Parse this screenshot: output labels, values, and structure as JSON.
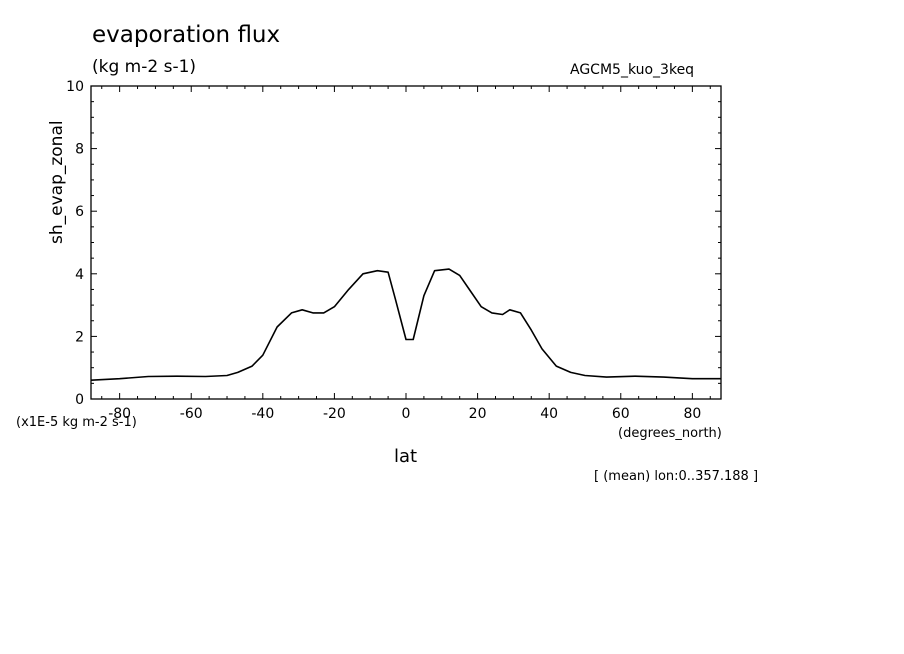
{
  "chart_data": {
    "type": "line",
    "title": "evaporation flux",
    "units": "(kg m-2 s-1)",
    "experiment": "AGCM5_kuo_3keq",
    "ylabel": "sh_evap_zonal",
    "xlabel": "lat",
    "x_units": "(degrees_north)",
    "y_scale_note": "(x1E-5 kg m-2 s-1)",
    "averaging_note": "[ (mean) lon:0..357.188 ]",
    "xlim": [
      -88,
      88
    ],
    "ylim": [
      0,
      10
    ],
    "x_ticks": [
      -80,
      -60,
      -40,
      -20,
      0,
      20,
      40,
      60,
      80
    ],
    "x_tick_labels": [
      "-80",
      "-60",
      "-40",
      "-20",
      "0",
      "20",
      "40",
      "60",
      "80"
    ],
    "y_ticks": [
      0,
      2,
      4,
      6,
      8,
      10
    ],
    "y_tick_labels": [
      "0",
      "2",
      "4",
      "6",
      "8",
      "10"
    ],
    "grid": false,
    "legend": "none",
    "series": [
      {
        "color": "#000000",
        "x": [
          -88,
          -80,
          -72,
          -64,
          -56,
          -50,
          -47,
          -43,
          -40,
          -36,
          -32,
          -29,
          -26,
          -23,
          -20,
          -16,
          -12,
          -8,
          -5,
          -3,
          0,
          2,
          5,
          8,
          12,
          15,
          18,
          21,
          24,
          27,
          29,
          32,
          35,
          38,
          42,
          46,
          50,
          56,
          64,
          72,
          80,
          88
        ],
        "y": [
          0.6,
          0.65,
          0.72,
          0.73,
          0.72,
          0.75,
          0.85,
          1.05,
          1.4,
          2.3,
          2.75,
          2.85,
          2.75,
          2.75,
          2.95,
          3.5,
          4.0,
          4.1,
          4.05,
          3.2,
          1.9,
          1.9,
          3.3,
          4.1,
          4.15,
          3.95,
          3.45,
          2.95,
          2.75,
          2.7,
          2.85,
          2.75,
          2.2,
          1.6,
          1.05,
          0.85,
          0.75,
          0.7,
          0.73,
          0.7,
          0.65,
          0.65
        ]
      }
    ]
  }
}
